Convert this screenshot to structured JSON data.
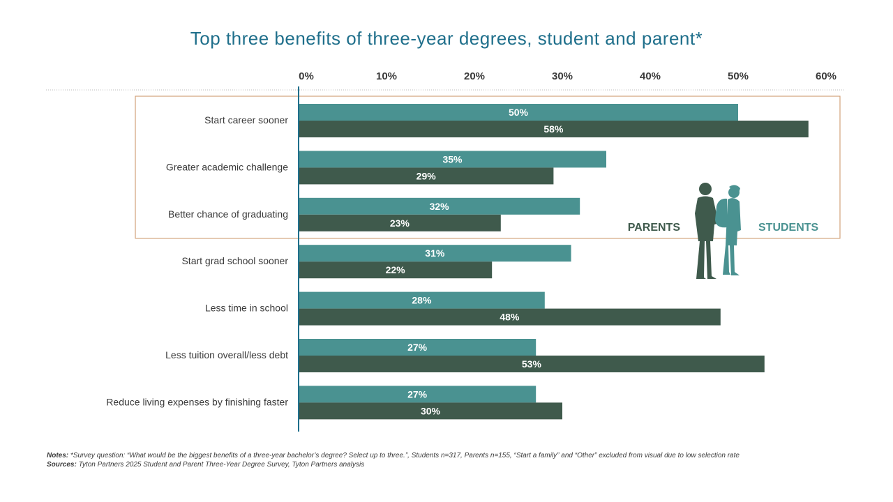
{
  "colors": {
    "title": "#1f6f8b",
    "students": "#4a9291",
    "parents": "#3f5a4c",
    "axis": "#1f6f8b",
    "highlight_box": "#d2a27a",
    "gridline": "#bbbbbb"
  },
  "chart_data": {
    "type": "bar",
    "orientation": "horizontal",
    "title": "Top three benefits of three-year degrees, student and parent*",
    "xlim": [
      0,
      60
    ],
    "x_ticks": [
      "0%",
      "10%",
      "20%",
      "30%",
      "40%",
      "50%",
      "60%"
    ],
    "categories": [
      "Start career sooner",
      "Greater academic challenge",
      "Better chance of graduating",
      "Start grad school sooner",
      "Less time in school",
      "Less tuition overall/less debt",
      "Reduce living expenses by finishing faster"
    ],
    "series": [
      {
        "name": "STUDENTS",
        "values": [
          50,
          35,
          32,
          31,
          28,
          27,
          27
        ],
        "labels": [
          "50%",
          "35%",
          "32%",
          "31%",
          "28%",
          "27%",
          "27%"
        ]
      },
      {
        "name": "PARENTS",
        "values": [
          58,
          29,
          23,
          22,
          48,
          53,
          30
        ],
        "labels": [
          "58%",
          "29%",
          "23%",
          "22%",
          "48%",
          "53%",
          "30%"
        ]
      }
    ],
    "highlighted_categories": [
      "Start career sooner",
      "Greater academic challenge",
      "Better chance of graduating"
    ],
    "legend": {
      "placement": "right",
      "icon": "parent-student-silhouette-icon"
    }
  },
  "notes": {
    "notes_label": "Notes:",
    "notes_text": " *Survey question: “What would be the biggest benefits of a three-year bachelor’s degree? Select up to three.”, Students n=317, Parents n=155, “Start a family” and “Other” excluded from visual due to low selection rate",
    "sources_label": "Sources:",
    "sources_text": " Tyton Partners 2025 Student and Parent Three-Year Degree Survey, Tyton Partners analysis"
  }
}
